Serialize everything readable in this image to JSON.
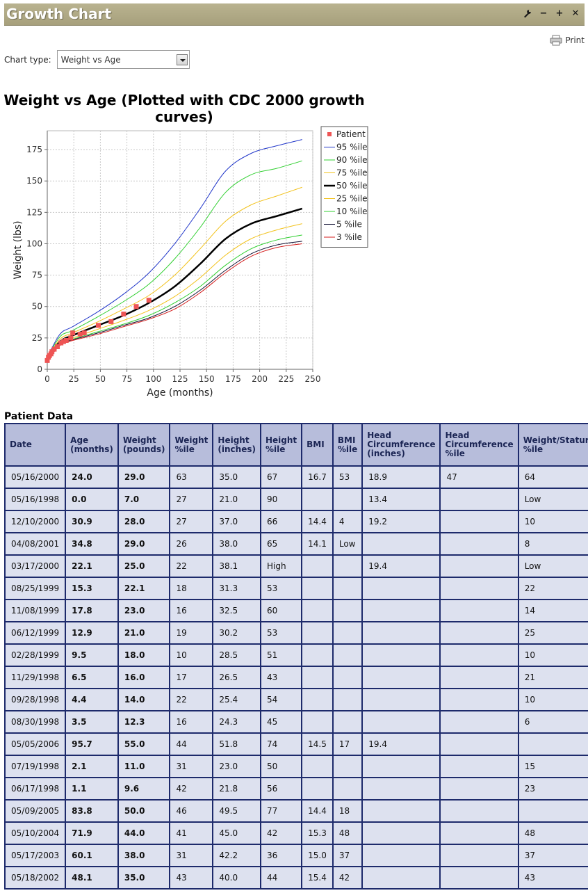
{
  "window": {
    "title": "Growth Chart",
    "controls": [
      {
        "name": "wrench-icon",
        "glyph": "🔧"
      },
      {
        "name": "minimize-icon",
        "glyph": "−"
      },
      {
        "name": "maximize-icon",
        "glyph": "+"
      },
      {
        "name": "close-icon",
        "glyph": "✕"
      }
    ]
  },
  "toolbar": {
    "print_label": "Print",
    "print_icon": "printer-icon"
  },
  "chart_type": {
    "label": "Chart type:",
    "selected": "Weight vs Age"
  },
  "chart_data": {
    "type": "line",
    "title": "Weight vs Age (Plotted with CDC 2000 growth curves)",
    "title_lines": [
      "Weight vs Age (Plotted with CDC 2000 growth",
      "curves)"
    ],
    "xlabel": "Age (months)",
    "ylabel": "Weight (lbs)",
    "xlim": [
      0,
      250
    ],
    "ylim": [
      0,
      190
    ],
    "x_ticks": [
      0,
      25,
      50,
      75,
      100,
      125,
      150,
      175,
      200,
      225,
      250
    ],
    "y_ticks": [
      0,
      25,
      50,
      75,
      100,
      125,
      150,
      175
    ],
    "grid": true,
    "legend_position": "right",
    "x": [
      0,
      12,
      24,
      48,
      72,
      96,
      120,
      144,
      168,
      192,
      216,
      240
    ],
    "series": [
      {
        "name": "Patient",
        "color": "#ee5555",
        "kind": "points",
        "points": [
          [
            0.0,
            7.0
          ],
          [
            1.1,
            9.6
          ],
          [
            2.1,
            11.0
          ],
          [
            3.5,
            12.3
          ],
          [
            4.4,
            14.0
          ],
          [
            6.5,
            16.0
          ],
          [
            9.5,
            18.0
          ],
          [
            12.9,
            21.0
          ],
          [
            15.3,
            22.1
          ],
          [
            17.8,
            23.0
          ],
          [
            22.1,
            25.0
          ],
          [
            24.0,
            29.0
          ],
          [
            30.9,
            28.0
          ],
          [
            34.8,
            29.0
          ],
          [
            48.1,
            35.0
          ],
          [
            60.1,
            38.0
          ],
          [
            71.9,
            44.0
          ],
          [
            83.8,
            50.0
          ],
          [
            95.7,
            55.0
          ]
        ]
      },
      {
        "name": "95 %ile",
        "color": "#1f35c9",
        "width": 1,
        "values": [
          9.5,
          28,
          34,
          46,
          60,
          77,
          100,
          128,
          158,
          172,
          178,
          183
        ]
      },
      {
        "name": "90 %ile",
        "color": "#2fcf2f",
        "width": 1,
        "values": [
          9,
          26,
          31,
          42,
          54,
          68,
          88,
          113,
          141,
          155,
          160,
          166
        ]
      },
      {
        "name": "75 %ile",
        "color": "#f2c21b",
        "width": 1,
        "values": [
          8.6,
          24,
          29,
          38,
          48,
          59,
          75,
          96,
          118,
          131,
          138,
          145
        ]
      },
      {
        "name": "50 %ile",
        "color": "#000000",
        "width": 2.5,
        "values": [
          8.2,
          22,
          27,
          35,
          43,
          53,
          66,
          84,
          104,
          116,
          122,
          128
        ]
      },
      {
        "name": "25 %ile",
        "color": "#f2c21b",
        "width": 1,
        "values": [
          7.6,
          21,
          25,
          32,
          39,
          47,
          58,
          73,
          91,
          104,
          111,
          116
        ]
      },
      {
        "name": "10 %ile",
        "color": "#2fcf2f",
        "width": 1,
        "values": [
          7.2,
          20,
          24,
          30,
          36,
          43,
          53,
          66,
          83,
          96,
          103,
          107
        ]
      },
      {
        "name": "5 %ile",
        "color": "#111133",
        "width": 1,
        "values": [
          7,
          19.5,
          23.5,
          29,
          35,
          41,
          50,
          63,
          79,
          92,
          99,
          102
        ]
      },
      {
        "name": "3 %ile",
        "color": "#d41c1c",
        "width": 1,
        "values": [
          6.8,
          19,
          23,
          28,
          34,
          40,
          48,
          61,
          77,
          90,
          97,
          100
        ]
      }
    ]
  },
  "patient_data": {
    "title": "Patient Data",
    "columns": [
      "Date",
      "Age (months)",
      "Weight (pounds)",
      "Weight %ile",
      "Height (inches)",
      "Height %ile",
      "BMI",
      "BMI %ile",
      "Head Circumference (inches)",
      "Head Circumference %ile",
      "Weight/Stature %ile"
    ],
    "rows": [
      [
        "05/16/2000",
        "24.0",
        "29.0",
        "63",
        "35.0",
        "67",
        "16.7",
        "53",
        "18.9",
        "47",
        "64"
      ],
      [
        "05/16/1998",
        "0.0",
        "7.0",
        "27",
        "21.0",
        "90",
        "",
        "",
        "13.4",
        "",
        "Low"
      ],
      [
        "12/10/2000",
        "30.9",
        "28.0",
        "27",
        "37.0",
        "66",
        "14.4",
        "4",
        "19.2",
        "",
        "10"
      ],
      [
        "04/08/2001",
        "34.8",
        "29.0",
        "26",
        "38.0",
        "65",
        "14.1",
        "Low",
        "",
        "",
        "8"
      ],
      [
        "03/17/2000",
        "22.1",
        "25.0",
        "22",
        "38.1",
        "High",
        "",
        "",
        "19.4",
        "",
        "Low"
      ],
      [
        "08/25/1999",
        "15.3",
        "22.1",
        "18",
        "31.3",
        "53",
        "",
        "",
        "",
        "",
        "22"
      ],
      [
        "11/08/1999",
        "17.8",
        "23.0",
        "16",
        "32.5",
        "60",
        "",
        "",
        "",
        "",
        "14"
      ],
      [
        "06/12/1999",
        "12.9",
        "21.0",
        "19",
        "30.2",
        "53",
        "",
        "",
        "",
        "",
        "25"
      ],
      [
        "02/28/1999",
        "9.5",
        "18.0",
        "10",
        "28.5",
        "51",
        "",
        "",
        "",
        "",
        "10"
      ],
      [
        "11/29/1998",
        "6.5",
        "16.0",
        "17",
        "26.5",
        "43",
        "",
        "",
        "",
        "",
        "21"
      ],
      [
        "09/28/1998",
        "4.4",
        "14.0",
        "22",
        "25.4",
        "54",
        "",
        "",
        "",
        "",
        "10"
      ],
      [
        "08/30/1998",
        "3.5",
        "12.3",
        "16",
        "24.3",
        "45",
        "",
        "",
        "",
        "",
        "6"
      ],
      [
        "05/05/2006",
        "95.7",
        "55.0",
        "44",
        "51.8",
        "74",
        "14.5",
        "17",
        "19.4",
        "",
        ""
      ],
      [
        "07/19/1998",
        "2.1",
        "11.0",
        "31",
        "23.0",
        "50",
        "",
        "",
        "",
        "",
        "15"
      ],
      [
        "06/17/1998",
        "1.1",
        "9.6",
        "42",
        "21.8",
        "56",
        "",
        "",
        "",
        "",
        "23"
      ],
      [
        "05/09/2005",
        "83.8",
        "50.0",
        "46",
        "49.5",
        "77",
        "14.4",
        "18",
        "",
        "",
        ""
      ],
      [
        "05/10/2004",
        "71.9",
        "44.0",
        "41",
        "45.0",
        "42",
        "15.3",
        "48",
        "",
        "",
        "48"
      ],
      [
        "05/17/2003",
        "60.1",
        "38.0",
        "31",
        "42.2",
        "36",
        "15.0",
        "37",
        "",
        "",
        "37"
      ],
      [
        "05/18/2002",
        "48.1",
        "35.0",
        "43",
        "40.0",
        "44",
        "15.4",
        "42",
        "",
        "",
        "43"
      ]
    ]
  }
}
